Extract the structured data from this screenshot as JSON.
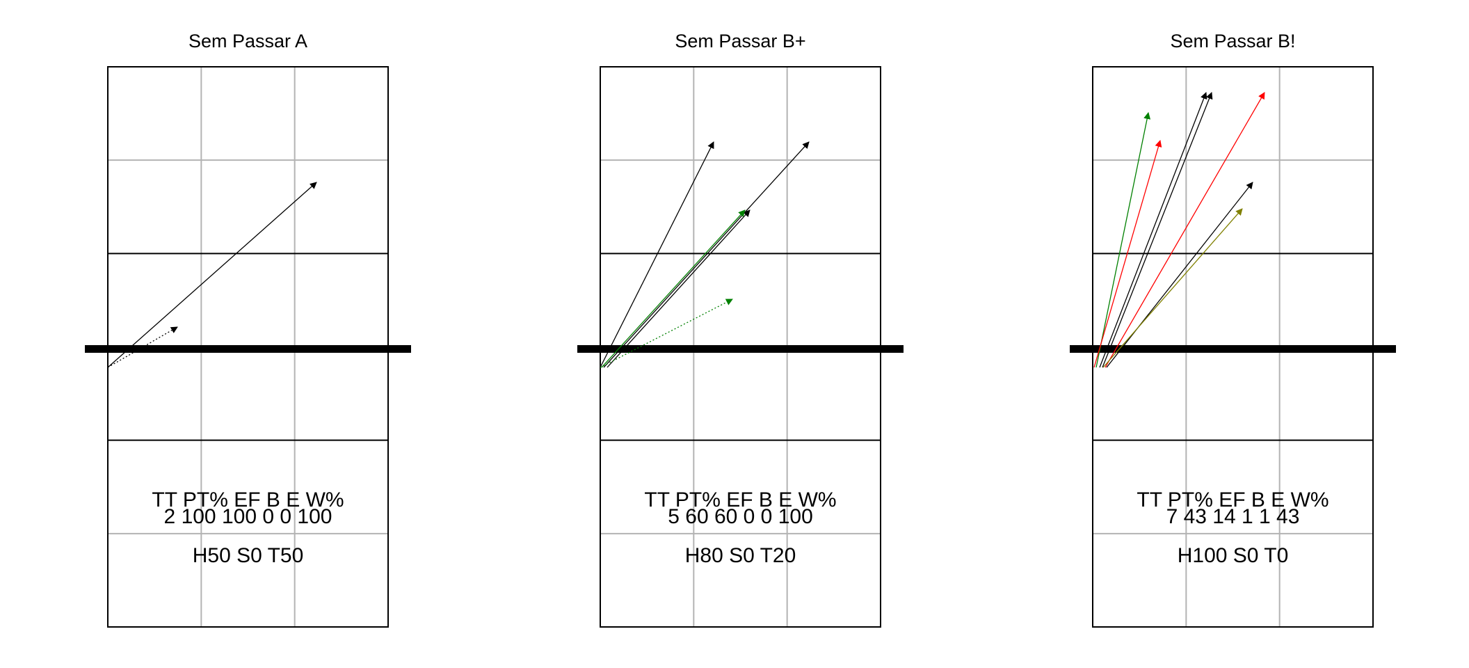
{
  "panels": [
    {
      "title": "Sem Passar A",
      "stats_header": "TT  PT%  EF  B  E  W%",
      "stats_values": "2  100  100  0  0  100",
      "summary": "H50 S0 T50",
      "arrows": [
        {
          "color": "#000000",
          "dotted": false
        },
        {
          "color": "#000000",
          "dotted": true
        }
      ]
    },
    {
      "title": "Sem Passar B+",
      "stats_header": "TT  PT%  EF  B  E  W%",
      "stats_values": "5  60  60  0  0  100",
      "summary": "H80 S0 T20",
      "arrows": [
        {
          "color": "#000000",
          "dotted": false
        },
        {
          "color": "#000000",
          "dotted": false
        },
        {
          "color": "#000000",
          "dotted": false
        },
        {
          "color": "#008000",
          "dotted": false
        },
        {
          "color": "#008000",
          "dotted": true
        }
      ]
    },
    {
      "title": "Sem Passar B!",
      "stats_header": "TT  PT%  EF  B  E  W%",
      "stats_values": "7  43  14  1  1  43",
      "summary": "H100 S0 T0",
      "arrows": [
        {
          "color": "#008000",
          "dotted": false
        },
        {
          "color": "#ff0000",
          "dotted": false
        },
        {
          "color": "#000000",
          "dotted": false
        },
        {
          "color": "#000000",
          "dotted": false
        },
        {
          "color": "#ff0000",
          "dotted": false
        },
        {
          "color": "#000000",
          "dotted": false
        },
        {
          "color": "#808000",
          "dotted": false
        }
      ]
    }
  ],
  "colors": {
    "grid": "#b3b3b3",
    "court_line": "#000000",
    "net": "#000000"
  }
}
